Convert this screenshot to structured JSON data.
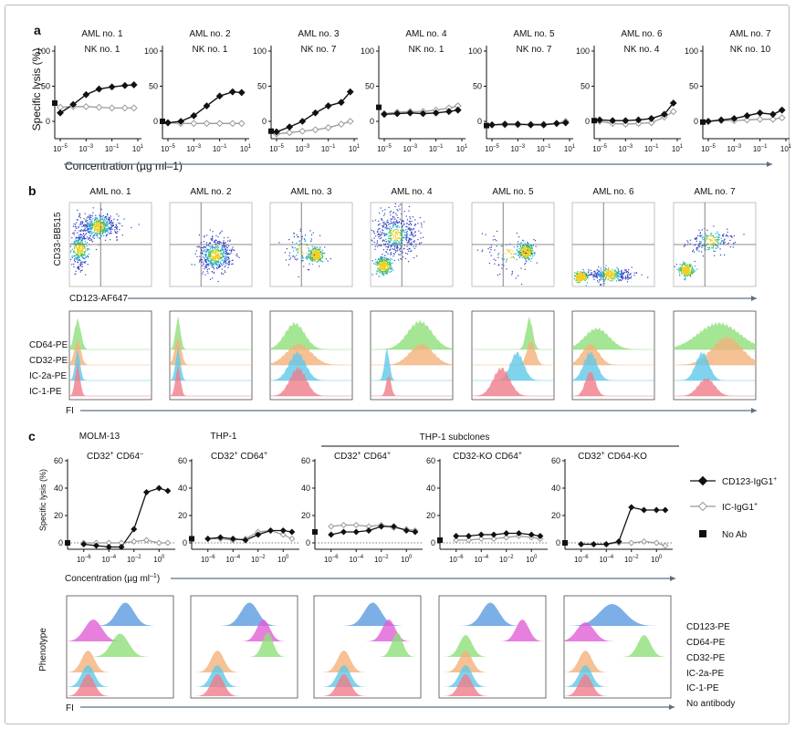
{
  "panel_labels": {
    "a": "a",
    "b": "b",
    "c": "c"
  },
  "panel_a": {
    "ylabel": "Specific lysis (%)",
    "xlabel": "Concentration (µg ml–1)",
    "y_ticks": [
      "100",
      "50",
      "0"
    ],
    "x_ticks": [
      "10",
      "10",
      "10",
      "10"
    ],
    "x_tick_exponents": [
      "–5",
      "–3",
      "–1",
      "1"
    ],
    "titles": [
      "AML no. 1",
      "AML no. 2",
      "AML no. 3",
      "AML no. 4",
      "AML no. 5",
      "AML no. 6",
      "AML no. 7"
    ],
    "subtitles": [
      "NK no. 1",
      "NK no. 1",
      "NK no. 7",
      "NK no. 1",
      "NK no. 7",
      "NK no. 4",
      "NK no. 10"
    ]
  },
  "panel_b": {
    "titles": [
      "AML no. 1",
      "AML no. 2",
      "AML no. 3",
      "AML no. 4",
      "AML no. 5",
      "AML no. 6",
      "AML no. 7"
    ],
    "scatter_ylabel": "CD33-BB515",
    "scatter_xlabel": "CD123-AF647",
    "hist_labels": [
      "CD64-PE",
      "CD32-PE",
      "IC-2a-PE",
      "IC-1-PE"
    ],
    "hist_xlabel": "FI"
  },
  "panel_c": {
    "titles": [
      "MOLM-13",
      "THP-1",
      "",
      "",
      ""
    ],
    "bracket_label": "THP-1 subclones",
    "phenotypes": [
      {
        "a": "CD32",
        "sa": "+",
        "b": "CD64",
        "sb": "–"
      },
      {
        "a": "CD32",
        "sa": "+",
        "b": "CD64",
        "sb": "+"
      },
      {
        "a": "CD32",
        "sa": "+",
        "b": "CD64",
        "sb": "+"
      },
      {
        "a": "CD32-KO",
        "sa": "",
        "b": "CD64",
        "sb": "+"
      },
      {
        "a": "CD32",
        "sa": "+",
        "b": "CD64-KO",
        "sb": ""
      }
    ],
    "ylabel": "Specific lysis (%)",
    "xlabel_main": "Concentration (µg ml",
    "xlabel_exp": "–1",
    "xlabel_close": ")",
    "y_ticks": [
      "60",
      "40",
      "20",
      "0"
    ],
    "x_ticks": [
      "10",
      "10",
      "10",
      "10"
    ],
    "x_tick_exponents": [
      "–6",
      "–4",
      "–2",
      "0"
    ],
    "legend": [
      {
        "label": "CD123-IgG1",
        "sup": "+",
        "marker": "filled-diamond",
        "color": "#111111"
      },
      {
        "label": "IC-IgG1",
        "sup": "+",
        "marker": "open-diamond",
        "color": "#9a9a9a"
      },
      {
        "label": "No Ab",
        "sup": "",
        "marker": "filled-square",
        "color": "#111111"
      }
    ],
    "phenotype_ylabel": "Phenotype",
    "hist_labels": [
      "CD123-PE",
      "CD64-PE",
      "CD32-PE",
      "IC-2a-PE",
      "IC-1-PE",
      "No antibody"
    ],
    "hist_xlabel": "FI"
  },
  "colors": {
    "black_series": "#111111",
    "gray_series": "#9a9a9a",
    "axis_arrow": "#5b7087",
    "cd64": "#8fe07a",
    "cd32": "#f3b27a",
    "ic2a": "#5fc8e8",
    "ic1": "#ef7d8a",
    "cd123": "#5b9be0",
    "cd64_c": "#e05fd6",
    "noab": "#ef7d8a"
  },
  "chart_data": [
    {
      "type": "line",
      "panel": "a",
      "x_scale": "log10",
      "xlim": [
        1e-05,
        10
      ],
      "ylim": [
        -20,
        100
      ],
      "xlabel": "Concentration (µg ml–1)",
      "ylabel": "Specific lysis (%)",
      "x": [
        1e-05,
        0.0001,
        0.001,
        0.01,
        0.1,
        1,
        5
      ],
      "series_markers": [
        "filled-diamond",
        "open-diamond",
        "filled-square"
      ],
      "plots": [
        {
          "title": "AML no. 1",
          "subtitle": "NK no. 1",
          "cd123": [
            12,
            24,
            38,
            46,
            49,
            51,
            52
          ],
          "ic": [
            20,
            21,
            21,
            20,
            19,
            19,
            19
          ],
          "noab": 26
        },
        {
          "title": "AML no. 2",
          "subtitle": "NK no. 1",
          "cd123": [
            -2,
            0,
            8,
            22,
            36,
            42,
            41
          ],
          "ic": [
            -2,
            -3,
            -3,
            -3,
            -3,
            -3,
            -3
          ],
          "noab": 0
        },
        {
          "title": "AML no. 3",
          "subtitle": "NK no. 7",
          "cd123": [
            -15,
            -8,
            0,
            12,
            22,
            27,
            42
          ],
          "ic": [
            -18,
            -16,
            -14,
            -12,
            -9,
            -4,
            0
          ],
          "noab": -14
        },
        {
          "title": "AML no. 4",
          "subtitle": "NK no. 1",
          "cd123": [
            10,
            11,
            12,
            11,
            12,
            14,
            16
          ],
          "ic": [
            11,
            13,
            14,
            14,
            16,
            19,
            22
          ],
          "noab": 20
        },
        {
          "title": "AML no. 5",
          "subtitle": "NK no. 7",
          "cd123": [
            -5,
            -4,
            -4,
            -5,
            -5,
            -3,
            -2
          ],
          "ic": [
            -5,
            -5,
            -5,
            -4,
            -4,
            -3,
            0
          ],
          "noab": -6
        },
        {
          "title": "AML no. 6",
          "subtitle": "NK no. 4",
          "cd123": [
            2,
            1,
            1,
            2,
            4,
            10,
            26
          ],
          "ic": [
            0,
            -3,
            -4,
            -3,
            -2,
            6,
            14
          ],
          "noab": 1
        },
        {
          "title": "AML no. 7",
          "subtitle": "NK no. 10",
          "cd123": [
            0,
            2,
            4,
            8,
            12,
            10,
            16
          ],
          "ic": [
            0,
            1,
            1,
            2,
            3,
            3,
            5
          ],
          "noab": -1
        }
      ]
    },
    {
      "type": "line",
      "panel": "c",
      "x_scale": "log10",
      "xlim": [
        1e-07,
        10
      ],
      "ylim": [
        -5,
        60
      ],
      "xlabel": "Concentration (µg ml–1)",
      "ylabel": "Specific lysis (%)",
      "x": [
        1e-06,
        1e-05,
        0.0001,
        0.001,
        0.01,
        0.1,
        1,
        5
      ],
      "plots": [
        {
          "title": "MOLM-13",
          "phenotype": "CD32+ CD64–",
          "cd123": [
            -1,
            -2,
            -3,
            -3,
            10,
            37,
            40,
            38
          ],
          "ic": [
            0,
            0,
            0,
            0,
            1,
            2,
            0,
            0
          ],
          "noab": 0
        },
        {
          "title": "THP-1",
          "phenotype": "CD32+ CD64+",
          "cd123": [
            3,
            4,
            3,
            2,
            6,
            9,
            9,
            8
          ],
          "ic": [
            3,
            3,
            2,
            3,
            8,
            9,
            6,
            3
          ],
          "noab": 3
        },
        {
          "title": "",
          "phenotype": "CD32+ CD64+",
          "cd123": [
            6,
            8,
            8,
            9,
            12,
            12,
            9,
            8
          ],
          "ic": [
            12,
            13,
            13,
            12,
            13,
            11,
            10,
            9
          ],
          "noab": 8
        },
        {
          "title": "",
          "phenotype": "CD32-KO CD64+",
          "cd123": [
            5,
            5,
            6,
            6,
            7,
            7,
            6,
            5
          ],
          "ic": [
            2,
            2,
            3,
            3,
            4,
            5,
            4,
            3
          ],
          "noab": 2
        },
        {
          "title": "",
          "phenotype": "CD32+ CD64-KO",
          "cd123": [
            -1,
            -1,
            -1,
            1,
            26,
            24,
            24,
            24
          ],
          "ic": [
            -1,
            -1,
            -1,
            0,
            0,
            1,
            0,
            -2
          ],
          "noab": 0
        }
      ],
      "legend": [
        "CD123-IgG1+",
        "IC-IgG1+",
        "No Ab"
      ]
    },
    {
      "type": "scatter",
      "panel": "b",
      "xlabel": "CD123-AF647",
      "ylabel": "CD33-BB515",
      "plots": [
        {
          "title": "AML no. 1",
          "clusters": [
            [
              0.35,
              0.72,
              0.28,
              0.15,
              1
            ],
            [
              0.12,
              0.45,
              0.1,
              0.25,
              0.6
            ]
          ]
        },
        {
          "title": "AML no. 2",
          "clusters": [
            [
              0.55,
              0.38,
              0.22,
              0.22,
              1
            ]
          ]
        },
        {
          "title": "AML no. 3",
          "clusters": [
            [
              0.55,
              0.38,
              0.1,
              0.08,
              0.6
            ],
            [
              0.4,
              0.45,
              0.25,
              0.25,
              0.2
            ]
          ]
        },
        {
          "title": "AML no. 4",
          "clusters": [
            [
              0.3,
              0.62,
              0.3,
              0.3,
              1
            ],
            [
              0.15,
              0.25,
              0.1,
              0.12,
              0.6
            ]
          ]
        },
        {
          "title": "AML no. 5",
          "clusters": [
            [
              0.65,
              0.42,
              0.1,
              0.1,
              0.6
            ],
            [
              0.45,
              0.4,
              0.3,
              0.3,
              0.2
            ]
          ]
        },
        {
          "title": "AML no. 6",
          "clusters": [
            [
              0.45,
              0.15,
              0.3,
              0.08,
              0.7
            ],
            [
              0.1,
              0.12,
              0.08,
              0.06,
              0.5
            ]
          ]
        },
        {
          "title": "AML no. 7",
          "clusters": [
            [
              0.45,
              0.55,
              0.3,
              0.15,
              0.4
            ],
            [
              0.15,
              0.2,
              0.1,
              0.08,
              0.5
            ]
          ]
        }
      ]
    },
    {
      "type": "area",
      "panel": "b-histograms",
      "rows": [
        "CD64-PE",
        "CD32-PE",
        "IC-2a-PE",
        "IC-1-PE"
      ],
      "peaks": [
        [
          [
            0.1,
            0.04,
            0.85
          ],
          [
            0.1,
            0.04,
            0.7
          ],
          [
            0.1,
            0.03,
            0.85
          ],
          [
            0.1,
            0.03,
            0.9
          ]
        ],
        [
          [
            0.1,
            0.03,
            0.9
          ],
          [
            0.1,
            0.04,
            0.75
          ],
          [
            0.1,
            0.03,
            0.9
          ],
          [
            0.1,
            0.03,
            0.85
          ]
        ],
        [
          [
            0.3,
            0.12,
            0.75
          ],
          [
            0.35,
            0.15,
            0.6
          ],
          [
            0.33,
            0.1,
            0.8
          ],
          [
            0.34,
            0.1,
            0.8
          ]
        ],
        [
          [
            0.6,
            0.15,
            0.8
          ],
          [
            0.62,
            0.14,
            0.6
          ],
          [
            0.2,
            0.03,
            0.9
          ],
          [
            0.22,
            0.03,
            0.6
          ]
        ],
        [
          [
            0.7,
            0.04,
            0.9
          ],
          [
            0.72,
            0.05,
            0.7
          ],
          [
            0.55,
            0.08,
            0.8
          ],
          [
            0.36,
            0.1,
            0.8
          ]
        ],
        [
          [
            0.3,
            0.15,
            0.6
          ],
          [
            0.22,
            0.1,
            0.6
          ],
          [
            0.22,
            0.08,
            0.8
          ],
          [
            0.22,
            0.06,
            0.7
          ]
        ],
        [
          [
            0.55,
            0.25,
            0.75
          ],
          [
            0.65,
            0.18,
            0.8
          ],
          [
            0.35,
            0.08,
            0.8
          ],
          [
            0.4,
            0.1,
            0.5
          ]
        ]
      ]
    },
    {
      "type": "area",
      "panel": "c-histograms",
      "rows": [
        "CD123-PE",
        "CD64-PE",
        "CD32-PE",
        "IC-2a-PE",
        "IC-1-PE",
        "No antibody"
      ],
      "peaks": [
        [
          [
            0.55,
            0.08,
            0.85
          ],
          [
            0.25,
            0.08,
            0.8
          ],
          [
            0.5,
            0.08,
            0.85
          ],
          [
            0.2,
            0.06,
            0.8
          ],
          [
            0.2,
            0.06,
            0.8
          ],
          [
            0.2,
            0.06,
            0.8
          ]
        ],
        [
          [
            0.55,
            0.08,
            0.85
          ],
          [
            0.68,
            0.06,
            0.8
          ],
          [
            0.72,
            0.05,
            0.9
          ],
          [
            0.25,
            0.06,
            0.8
          ],
          [
            0.25,
            0.06,
            0.8
          ],
          [
            0.25,
            0.06,
            0.8
          ]
        ],
        [
          [
            0.55,
            0.08,
            0.85
          ],
          [
            0.7,
            0.06,
            0.8
          ],
          [
            0.78,
            0.05,
            0.9
          ],
          [
            0.28,
            0.06,
            0.8
          ],
          [
            0.28,
            0.06,
            0.8
          ],
          [
            0.28,
            0.06,
            0.8
          ]
        ],
        [
          [
            0.48,
            0.08,
            0.85
          ],
          [
            0.78,
            0.06,
            0.8
          ],
          [
            0.25,
            0.06,
            0.8
          ],
          [
            0.25,
            0.06,
            0.8
          ],
          [
            0.25,
            0.06,
            0.8
          ],
          [
            0.25,
            0.06,
            0.8
          ]
        ],
        [
          [
            0.45,
            0.12,
            0.8
          ],
          [
            0.2,
            0.08,
            0.7
          ],
          [
            0.75,
            0.06,
            0.8
          ],
          [
            0.2,
            0.06,
            0.8
          ],
          [
            0.2,
            0.06,
            0.8
          ],
          [
            0.2,
            0.06,
            0.8
          ]
        ]
      ]
    }
  ]
}
